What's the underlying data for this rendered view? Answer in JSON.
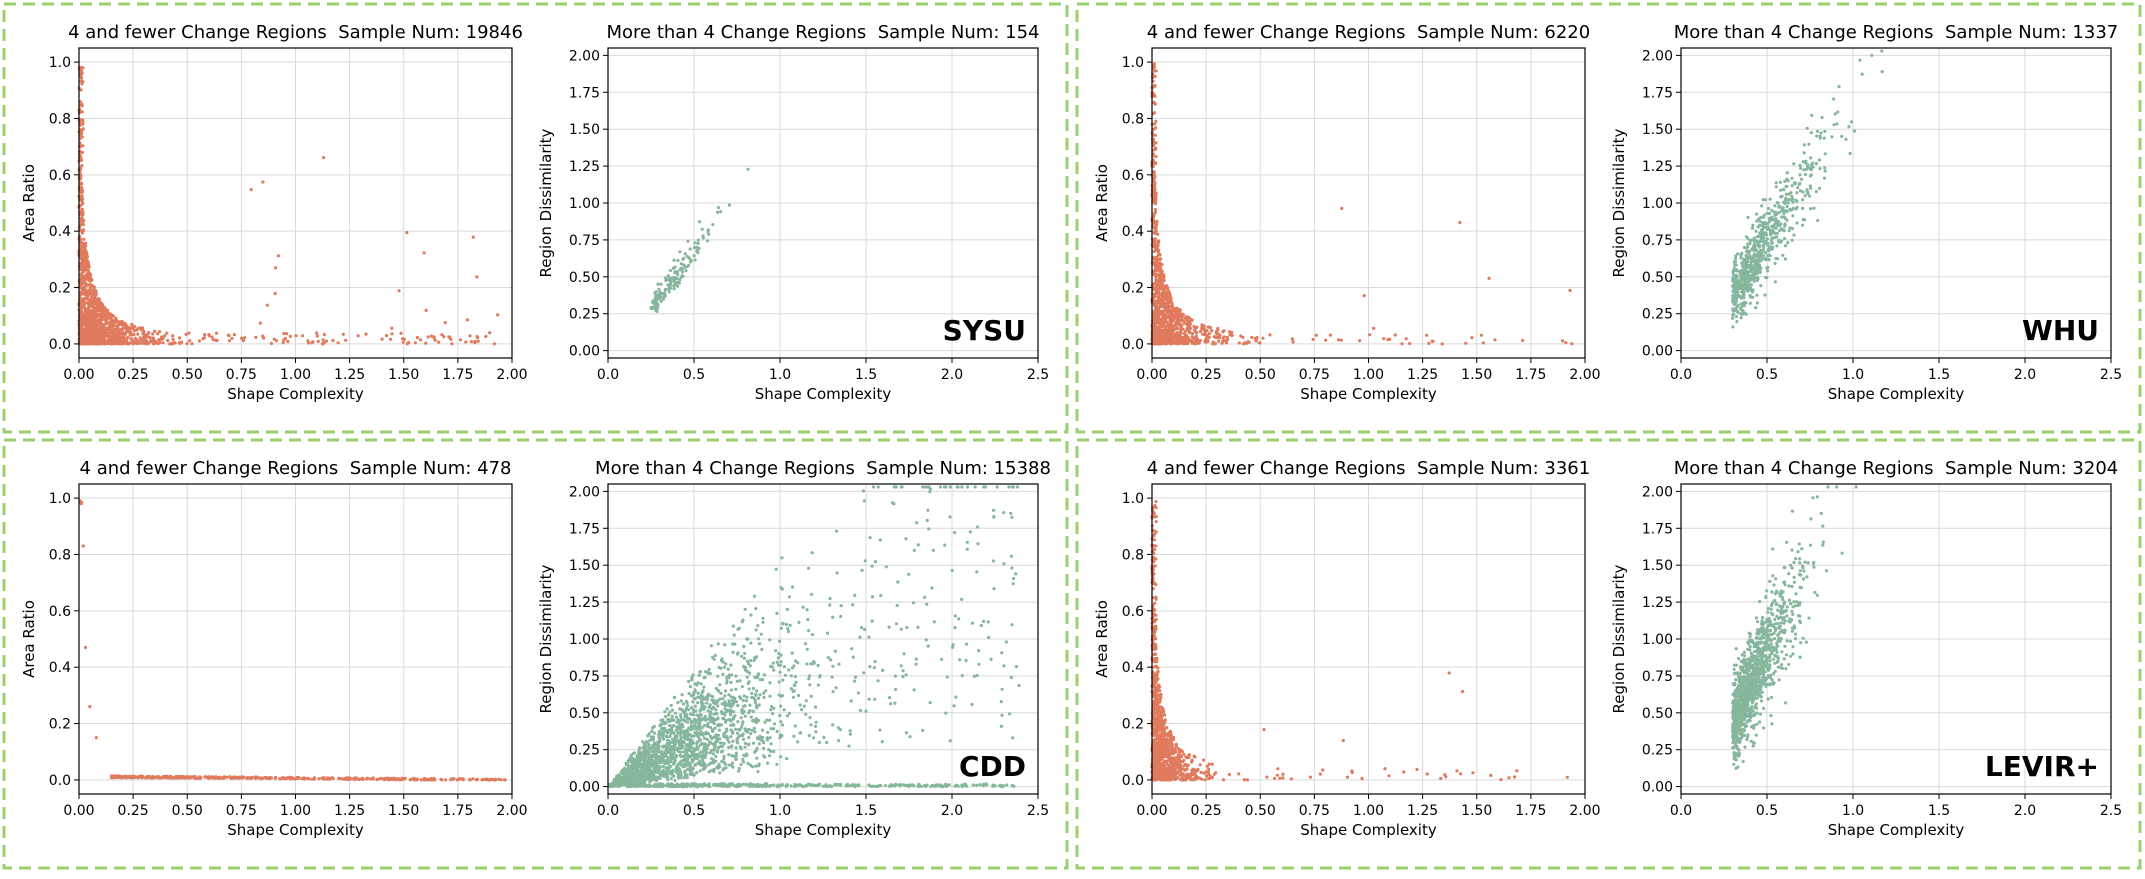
{
  "colors": {
    "left_points": "#e07b5e",
    "right_points": "#86b79d",
    "panel_border": "#9ccf6e",
    "grid": "#d9d9d9"
  },
  "chart_data": [
    {
      "dataset": "SYSU",
      "panels": [
        {
          "type": "scatter",
          "side": "left",
          "title": "4 and fewer Change Regions  Sample Num: 19846",
          "xlabel": "Shape Complexity",
          "ylabel": "Area Ratio",
          "xlim": [
            0,
            2.0
          ],
          "ylim": [
            -0.05,
            1.05
          ],
          "xticks": [
            "0.00",
            "0.25",
            "0.50",
            "0.75",
            "1.00",
            "1.25",
            "1.50",
            "1.75",
            "2.00"
          ],
          "yticks": [
            "0.0",
            "0.2",
            "0.4",
            "0.6",
            "0.8",
            "1.0"
          ],
          "dist": {
            "kind": "decay",
            "n": 1400,
            "spread": 0.18,
            "ymax": 1.0,
            "tail": 0.12,
            "seed": 11
          }
        },
        {
          "type": "scatter",
          "side": "right",
          "title": "More than 4 Change Regions  Sample Num: 154",
          "xlabel": "Shape Complexity",
          "ylabel": "Region Dissimilarity",
          "xlim": [
            0,
            2.5
          ],
          "ylim": [
            -0.05,
            2.05
          ],
          "xticks": [
            "0.0",
            "0.5",
            "1.0",
            "1.5",
            "2.0",
            "2.5"
          ],
          "yticks": [
            "0.00",
            "0.25",
            "0.50",
            "0.75",
            "1.00",
            "1.25",
            "1.50",
            "1.75",
            "2.00"
          ],
          "dist": {
            "kind": "linear",
            "n": 154,
            "xcenter": 0.25,
            "xscale": 0.2,
            "slope": 1.55,
            "intercept": -0.1,
            "noise": 0.06,
            "seed": 21
          }
        }
      ]
    },
    {
      "dataset": "WHU",
      "panels": [
        {
          "type": "scatter",
          "side": "left",
          "title": "4 and fewer Change Regions  Sample Num: 6220",
          "xlabel": "Shape Complexity",
          "ylabel": "Area Ratio",
          "xlim": [
            0,
            2.0
          ],
          "ylim": [
            -0.05,
            1.05
          ],
          "xticks": [
            "0.00",
            "0.25",
            "0.50",
            "0.75",
            "1.00",
            "1.25",
            "1.50",
            "1.75",
            "2.00"
          ],
          "yticks": [
            "0.0",
            "0.2",
            "0.4",
            "0.6",
            "0.8",
            "1.0"
          ],
          "dist": {
            "kind": "decay",
            "n": 1100,
            "spread": 0.15,
            "ymax": 1.0,
            "tail": 0.06,
            "seed": 31
          }
        },
        {
          "type": "scatter",
          "side": "right",
          "title": "More than 4 Change Regions  Sample Num: 1337",
          "xlabel": "Shape Complexity",
          "ylabel": "Region Dissimilarity",
          "xlim": [
            0,
            2.5
          ],
          "ylim": [
            -0.05,
            2.05
          ],
          "xticks": [
            "0.0",
            "0.5",
            "1.0",
            "1.5",
            "2.0",
            "2.5"
          ],
          "yticks": [
            "0.00",
            "0.25",
            "0.50",
            "0.75",
            "1.00",
            "1.25",
            "1.50",
            "1.75",
            "2.00"
          ],
          "dist": {
            "kind": "linear",
            "n": 700,
            "xcenter": 0.3,
            "xscale": 0.25,
            "slope": 1.9,
            "intercept": -0.2,
            "noise": 0.14,
            "seed": 41
          }
        }
      ]
    },
    {
      "dataset": "CDD",
      "panels": [
        {
          "type": "scatter",
          "side": "left",
          "title": "4 and fewer Change Regions  Sample Num: 478",
          "xlabel": "Shape Complexity",
          "ylabel": "Area Ratio",
          "xlim": [
            0,
            2.0
          ],
          "ylim": [
            -0.05,
            1.05
          ],
          "xticks": [
            "0.00",
            "0.25",
            "0.50",
            "0.75",
            "1.00",
            "1.25",
            "1.50",
            "1.75",
            "2.00"
          ],
          "yticks": [
            "0.0",
            "0.2",
            "0.4",
            "0.6",
            "0.8",
            "1.0"
          ],
          "dist": {
            "kind": "flat",
            "n": 478,
            "seed": 51
          }
        },
        {
          "type": "scatter",
          "side": "right",
          "title": "More than 4 Change Regions  Sample Num: 15388",
          "xlabel": "Shape Complexity",
          "ylabel": "Region Dissimilarity",
          "xlim": [
            0,
            2.5
          ],
          "ylim": [
            -0.05,
            2.05
          ],
          "xticks": [
            "0.0",
            "0.5",
            "1.0",
            "1.5",
            "2.0",
            "2.5"
          ],
          "yticks": [
            "0.00",
            "0.25",
            "0.50",
            "0.75",
            "1.00",
            "1.25",
            "1.50",
            "1.75",
            "2.00"
          ],
          "dist": {
            "kind": "fan",
            "n": 2200,
            "seed": 61
          }
        }
      ]
    },
    {
      "dataset": "LEVIR+",
      "panels": [
        {
          "type": "scatter",
          "side": "left",
          "title": "4 and fewer Change Regions  Sample Num: 3361",
          "xlabel": "Shape Complexity",
          "ylabel": "Area Ratio",
          "xlim": [
            0,
            2.0
          ],
          "ylim": [
            -0.05,
            1.05
          ],
          "xticks": [
            "0.00",
            "0.25",
            "0.50",
            "0.75",
            "1.00",
            "1.25",
            "1.50",
            "1.75",
            "2.00"
          ],
          "yticks": [
            "0.0",
            "0.2",
            "0.4",
            "0.6",
            "0.8",
            "1.0"
          ],
          "dist": {
            "kind": "decay",
            "n": 1000,
            "spread": 0.12,
            "ymax": 1.0,
            "tail": 0.05,
            "seed": 71
          }
        },
        {
          "type": "scatter",
          "side": "right",
          "title": "More than 4 Change Regions  Sample Num: 3204",
          "xlabel": "Shape Complexity",
          "ylabel": "Region Dissimilarity",
          "xlim": [
            0,
            2.5
          ],
          "ylim": [
            -0.05,
            2.05
          ],
          "xticks": [
            "0.0",
            "0.5",
            "1.0",
            "1.5",
            "2.0",
            "2.5"
          ],
          "yticks": [
            "0.00",
            "0.25",
            "0.50",
            "0.75",
            "1.00",
            "1.25",
            "1.50",
            "1.75",
            "2.00"
          ],
          "dist": {
            "kind": "linear",
            "n": 1200,
            "xcenter": 0.3,
            "xscale": 0.18,
            "slope": 2.3,
            "intercept": -0.25,
            "noise": 0.2,
            "seed": 81
          }
        }
      ]
    }
  ]
}
